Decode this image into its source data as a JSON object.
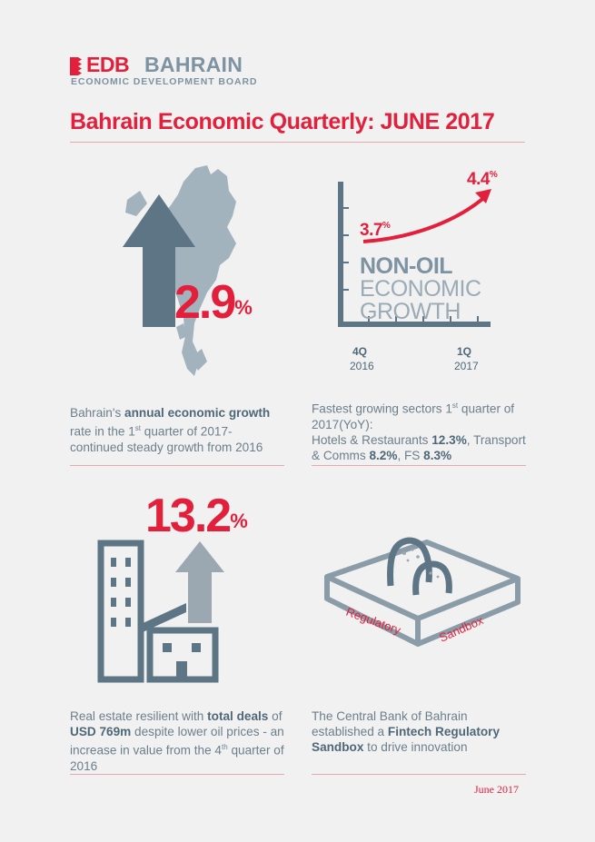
{
  "header": {
    "logo_edb": "EDB",
    "logo_bahrain": "BAHRAIN",
    "logo_subtitle": "ECONOMIC DEVELOPMENT BOARD",
    "title": "Bahrain Economic Quarterly: JUNE 2017"
  },
  "panel_growth": {
    "value": "2.9",
    "unit": "%",
    "caption_pre": "Bahrain's ",
    "caption_bold": "annual economic growth",
    "caption_mid": " rate in the 1",
    "caption_sup": "st",
    "caption_post": " quarter of 2017- continued steady growth from 2016"
  },
  "panel_nonoil": {
    "label_line1": "NON-OIL",
    "label_line2": "ECONOMIC",
    "label_line3": "GROWTH",
    "start_value": "3.7",
    "end_value": "4.4",
    "unit": "%",
    "x_start_q": "4Q",
    "x_start_year": "2016",
    "x_end_q": "1Q",
    "x_end_year": "2017",
    "caption_pre": "Fastest growing sectors 1",
    "caption_sup": "st",
    "caption_mid": " quarter of 2017(YoY):",
    "caption_hotels": "Hotels & Restaurants ",
    "caption_hotels_val": "12.3%",
    "caption_transport": ", Transport & Comms ",
    "caption_transport_val": "8.2%",
    "caption_fs": ", FS ",
    "caption_fs_val": "8.3%"
  },
  "panel_realestate": {
    "value": "13.2",
    "unit": "%",
    "caption_pre": "Real estate resilient with ",
    "caption_bold1": "total deals",
    "caption_of": " of ",
    "caption_bold2": "USD 769m",
    "caption_mid": " despite lower oil prices - an increase in value from the 4",
    "caption_sup": "th",
    "caption_post": " quarter of 2016"
  },
  "panel_sandbox": {
    "label_left": "Regulatory",
    "label_right": "Sandbox",
    "caption_pre": "The Central Bank of Bahrain established a ",
    "caption_bold": "Fintech Regulatory Sandbox",
    "caption_post": " to drive innovation"
  },
  "footer": {
    "date": "June 2017"
  },
  "colors": {
    "red": "#e2203c",
    "slate": "#5b7383",
    "grey": "#9ba8b1"
  },
  "icons": [
    "bahrain-map-icon",
    "up-arrow-icon",
    "line-chart-icon",
    "buildings-icon",
    "sandbox-icon"
  ]
}
